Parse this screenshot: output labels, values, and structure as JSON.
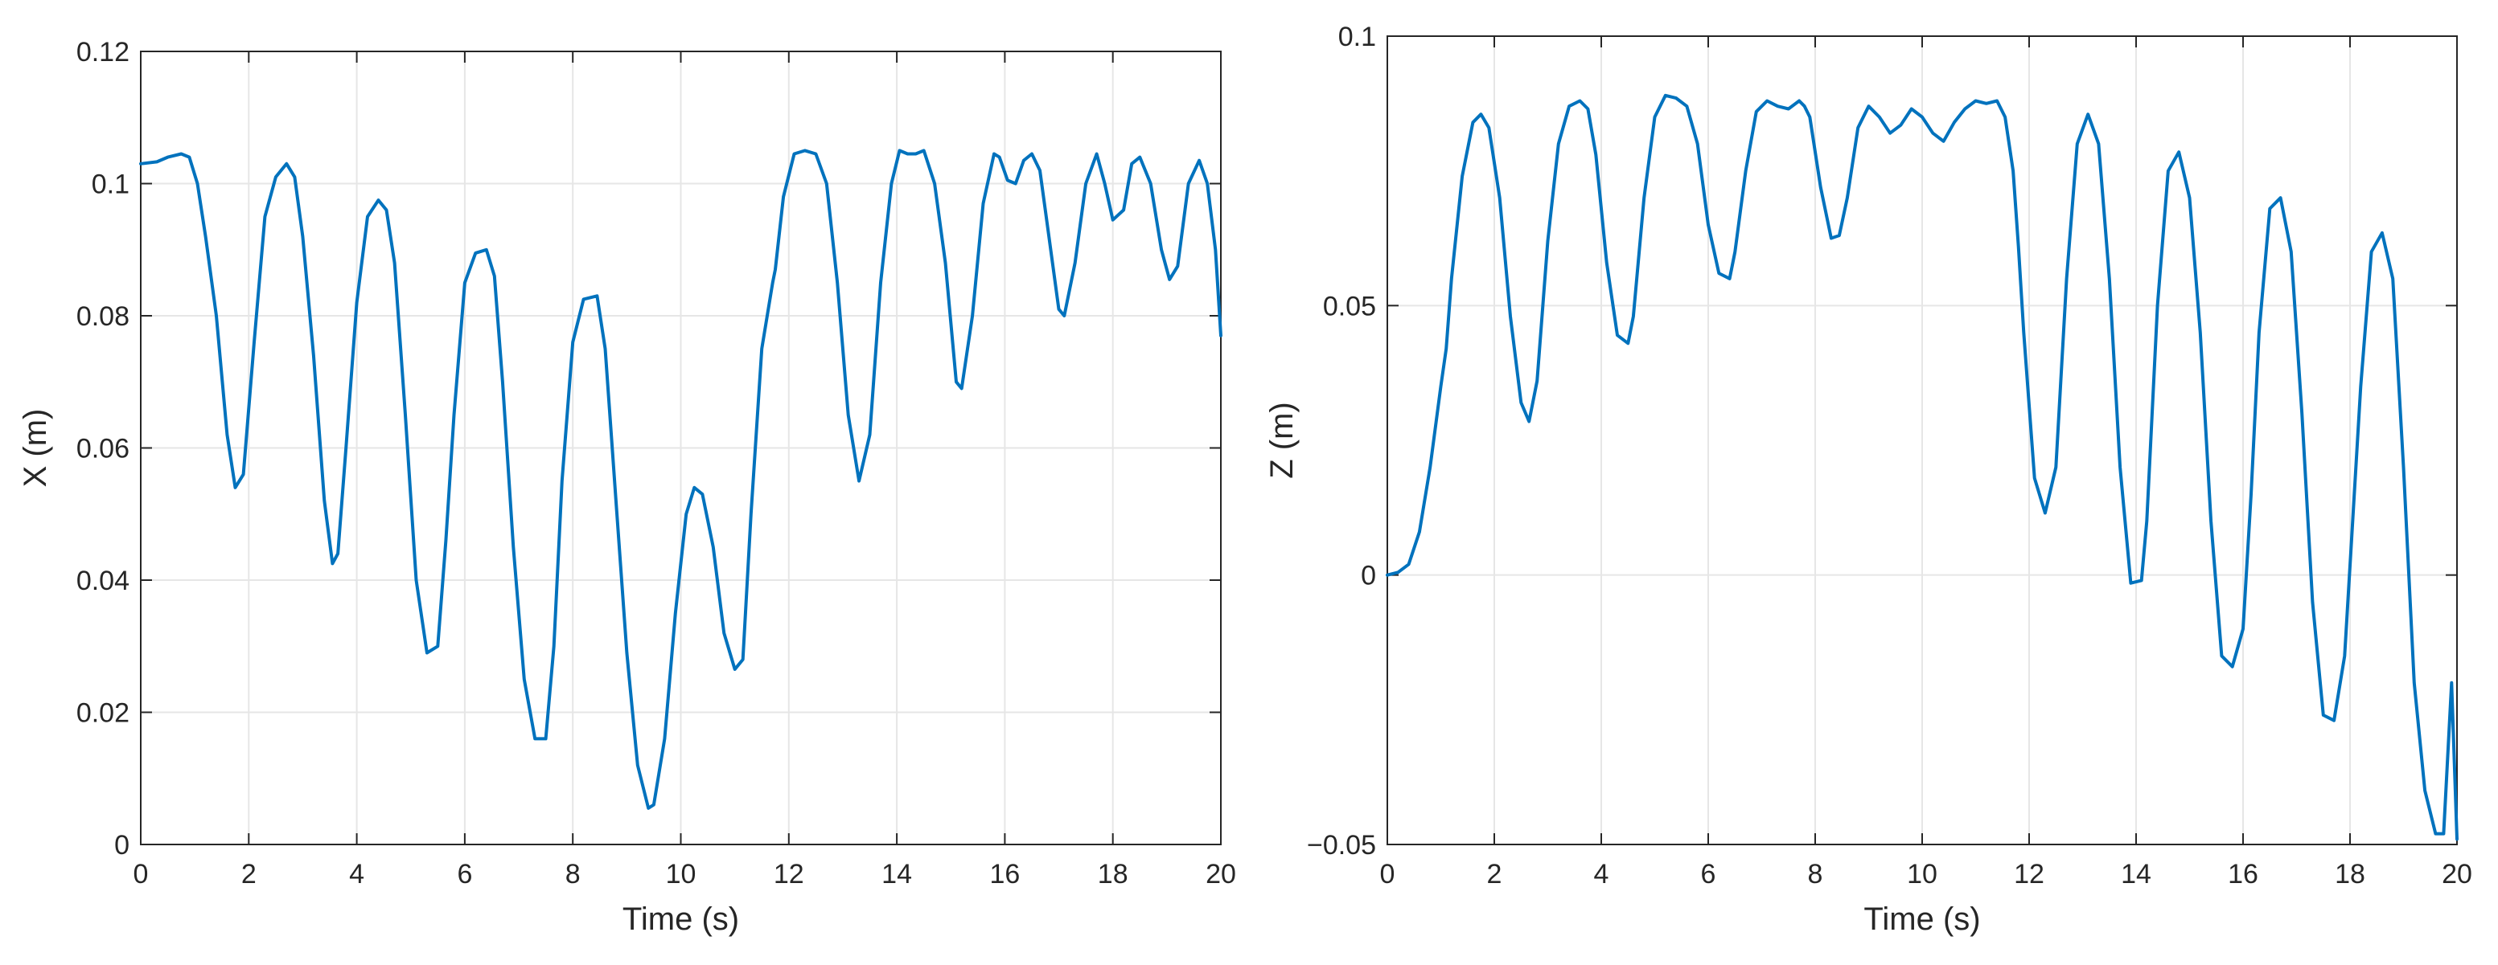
{
  "colors": {
    "series": "#0072BD",
    "axis": "#262626",
    "grid": "#e6e6e6",
    "background": "#ffffff"
  },
  "chart_data": [
    {
      "type": "line",
      "xlabel": "Time (s)",
      "ylabel": "X (m)",
      "xlim": [
        0,
        20
      ],
      "ylim": [
        0,
        0.12
      ],
      "xticks": [
        0,
        2,
        4,
        6,
        8,
        10,
        12,
        14,
        16,
        18,
        20
      ],
      "yticks": [
        0,
        0.02,
        0.04,
        0.06,
        0.08,
        0.1,
        0.12
      ],
      "xtick_labels": [
        "0",
        "2",
        "4",
        "6",
        "8",
        "10",
        "12",
        "14",
        "16",
        "18",
        "20"
      ],
      "ytick_labels": [
        "0",
        "0.02",
        "0.04",
        "0.06",
        "0.08",
        "0.1",
        "0.12"
      ],
      "grid": true,
      "series": [
        {
          "x": [
            0,
            0.3,
            0.5,
            0.75,
            0.9,
            1.05,
            1.2,
            1.4,
            1.6,
            1.75,
            1.9,
            2.1,
            2.3,
            2.5,
            2.7,
            2.85,
            3.0,
            3.2,
            3.4,
            3.55,
            3.65,
            3.8,
            4.0,
            4.2,
            4.4,
            4.55,
            4.7,
            4.9,
            5.1,
            5.3,
            5.5,
            5.65,
            5.8,
            6.0,
            6.2,
            6.4,
            6.55,
            6.7,
            6.9,
            7.1,
            7.3,
            7.5,
            7.65,
            7.8,
            8.0,
            8.2,
            8.45,
            8.6,
            8.8,
            9.0,
            9.2,
            9.4,
            9.5,
            9.7,
            9.9,
            10.1,
            10.25,
            10.4,
            10.6,
            10.8,
            11.0,
            11.15,
            11.3,
            11.5,
            11.7,
            11.75,
            11.9,
            12.1,
            12.3,
            12.5,
            12.7,
            12.9,
            13.1,
            13.3,
            13.5,
            13.7,
            13.9,
            14.05,
            14.2,
            14.35,
            14.5,
            14.7,
            14.9,
            15.1,
            15.2,
            15.4,
            15.6,
            15.8,
            15.9,
            16.05,
            16.2,
            16.35,
            16.5,
            16.65,
            16.8,
            17.0,
            17.1,
            17.3,
            17.5,
            17.7,
            17.85,
            18.0,
            18.2,
            18.35,
            18.5,
            18.7,
            18.9,
            19.05,
            19.2,
            19.4,
            19.6,
            19.75,
            19.9,
            20.0
          ],
          "y": [
            0.103,
            0.1033,
            0.104,
            0.1045,
            0.104,
            0.1,
            0.092,
            0.08,
            0.062,
            0.054,
            0.056,
            0.076,
            0.095,
            0.101,
            0.103,
            0.101,
            0.092,
            0.074,
            0.052,
            0.0425,
            0.044,
            0.06,
            0.082,
            0.095,
            0.0975,
            0.096,
            0.088,
            0.065,
            0.04,
            0.029,
            0.03,
            0.046,
            0.065,
            0.085,
            0.0895,
            0.09,
            0.086,
            0.07,
            0.045,
            0.025,
            0.016,
            0.016,
            0.03,
            0.055,
            0.076,
            0.0825,
            0.083,
            0.075,
            0.052,
            0.029,
            0.012,
            0.0055,
            0.006,
            0.016,
            0.035,
            0.05,
            0.054,
            0.053,
            0.045,
            0.032,
            0.0265,
            0.028,
            0.05,
            0.075,
            0.085,
            0.087,
            0.098,
            0.1045,
            0.105,
            0.1045,
            0.1,
            0.085,
            0.065,
            0.055,
            0.062,
            0.085,
            0.1,
            0.105,
            0.1045,
            0.1045,
            0.105,
            0.1,
            0.088,
            0.07,
            0.069,
            0.08,
            0.097,
            0.1045,
            0.104,
            0.1005,
            0.1,
            0.1035,
            0.1045,
            0.102,
            0.093,
            0.081,
            0.08,
            0.088,
            0.1,
            0.1045,
            0.1,
            0.0945,
            0.096,
            0.103,
            0.104,
            0.1,
            0.09,
            0.0855,
            0.0875,
            0.1,
            0.1035,
            0.1,
            0.09,
            0.077
          ]
        }
      ]
    },
    {
      "type": "line",
      "xlabel": "Time (s)",
      "ylabel": "Z (m)",
      "xlim": [
        0,
        20
      ],
      "ylim": [
        -0.05,
        0.1
      ],
      "xticks": [
        0,
        2,
        4,
        6,
        8,
        10,
        12,
        14,
        16,
        18,
        20
      ],
      "yticks": [
        -0.05,
        0,
        0.05,
        0.1
      ],
      "xtick_labels": [
        "0",
        "2",
        "4",
        "6",
        "8",
        "10",
        "12",
        "14",
        "16",
        "18",
        "20"
      ],
      "ytick_labels": [
        "−0.05",
        "0",
        "0.05",
        "0.1"
      ],
      "grid": true,
      "series": [
        {
          "x": [
            0,
            0.2,
            0.4,
            0.6,
            0.8,
            1.0,
            1.1,
            1.2,
            1.4,
            1.6,
            1.75,
            1.9,
            2.1,
            2.3,
            2.5,
            2.65,
            2.8,
            3.0,
            3.2,
            3.4,
            3.6,
            3.75,
            3.9,
            4.1,
            4.3,
            4.5,
            4.6,
            4.8,
            5.0,
            5.2,
            5.4,
            5.6,
            5.8,
            6.0,
            6.2,
            6.4,
            6.5,
            6.7,
            6.9,
            7.1,
            7.3,
            7.5,
            7.7,
            7.8,
            7.9,
            8.1,
            8.3,
            8.45,
            8.6,
            8.8,
            9.0,
            9.2,
            9.4,
            9.6,
            9.8,
            10.0,
            10.2,
            10.4,
            10.6,
            10.8,
            11.0,
            11.2,
            11.4,
            11.55,
            11.7,
            11.8,
            11.9,
            12.1,
            12.3,
            12.5,
            12.7,
            12.9,
            13.1,
            13.3,
            13.5,
            13.7,
            13.9,
            14.1,
            14.2,
            14.4,
            14.6,
            14.8,
            15.0,
            15.2,
            15.4,
            15.6,
            15.8,
            16.0,
            16.15,
            16.3,
            16.5,
            16.7,
            16.9,
            17.1,
            17.3,
            17.5,
            17.7,
            17.9,
            18.05,
            18.2,
            18.4,
            18.6,
            18.8,
            19.0,
            19.2,
            19.4,
            19.6,
            19.75,
            19.9,
            20.0
          ],
          "y": [
            0,
            0.0005,
            0.002,
            0.008,
            0.02,
            0.035,
            0.042,
            0.055,
            0.074,
            0.084,
            0.0855,
            0.083,
            0.07,
            0.048,
            0.032,
            0.0285,
            0.036,
            0.062,
            0.08,
            0.087,
            0.088,
            0.0865,
            0.078,
            0.058,
            0.0445,
            0.043,
            0.048,
            0.07,
            0.085,
            0.089,
            0.0885,
            0.087,
            0.08,
            0.065,
            0.056,
            0.055,
            0.06,
            0.075,
            0.086,
            0.088,
            0.087,
            0.0865,
            0.088,
            0.087,
            0.085,
            0.072,
            0.0625,
            0.063,
            0.07,
            0.083,
            0.087,
            0.085,
            0.082,
            0.0835,
            0.0865,
            0.085,
            0.082,
            0.0805,
            0.084,
            0.0865,
            0.088,
            0.0875,
            0.088,
            0.085,
            0.075,
            0.061,
            0.045,
            0.018,
            0.0115,
            0.02,
            0.055,
            0.08,
            0.0855,
            0.08,
            0.055,
            0.02,
            -0.0015,
            -0.001,
            0.01,
            0.05,
            0.075,
            0.0785,
            0.07,
            0.045,
            0.01,
            -0.015,
            -0.017,
            -0.01,
            0.015,
            0.045,
            0.068,
            0.07,
            0.06,
            0.03,
            -0.005,
            -0.026,
            -0.027,
            -0.015,
            0.01,
            0.035,
            0.06,
            0.0635,
            0.055,
            0.02,
            -0.02,
            -0.04,
            -0.048,
            -0.048,
            -0.02,
            -0.049
          ]
        }
      ]
    }
  ]
}
